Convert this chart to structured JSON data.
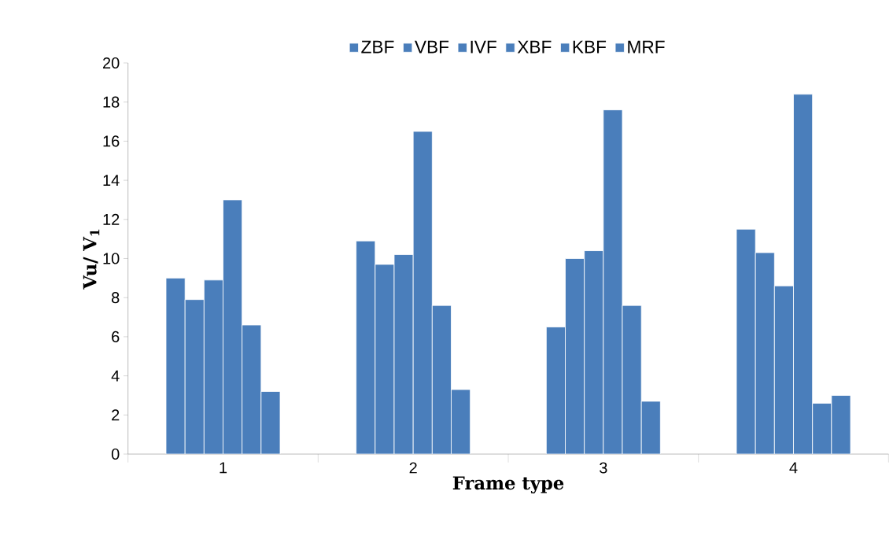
{
  "chart_data": {
    "type": "bar",
    "xlabel": "Frame type",
    "ylabel": "Vu/ V$_{1}$",
    "categories": [
      "1",
      "2",
      "3",
      "4"
    ],
    "series": [
      {
        "name": "ZBF",
        "color": "#4a7ebb",
        "values": [
          9.0,
          10.9,
          6.5,
          11.5
        ]
      },
      {
        "name": "VBF",
        "color": "#4a7ebb",
        "values": [
          7.9,
          9.7,
          10.0,
          10.3
        ]
      },
      {
        "name": "IVF",
        "color": "#4a7ebb",
        "values": [
          8.9,
          10.2,
          10.4,
          8.6
        ]
      },
      {
        "name": "XBF",
        "color": "#4a7ebb",
        "values": [
          13.0,
          16.5,
          17.6,
          18.4
        ]
      },
      {
        "name": "KBF",
        "color": "#4a7ebb",
        "values": [
          6.6,
          7.6,
          7.6,
          2.6
        ]
      },
      {
        "name": "MRF",
        "color": "#4a7ebb",
        "values": [
          3.2,
          3.3,
          2.7,
          3.0
        ]
      }
    ],
    "ylim": [
      0,
      20
    ],
    "yticks": [
      0,
      2,
      4,
      6,
      8,
      10,
      12,
      14,
      16,
      18,
      20
    ],
    "legend": "top"
  }
}
